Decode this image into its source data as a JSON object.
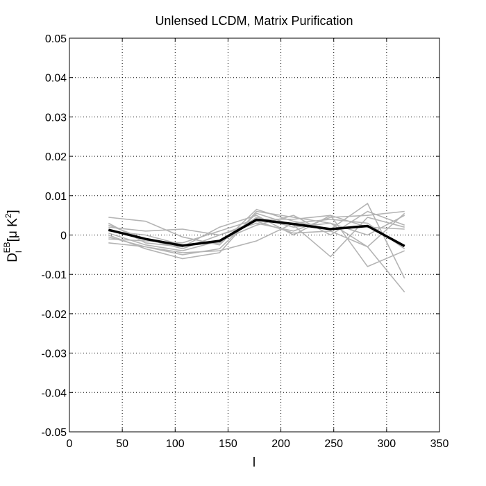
{
  "chart_data": {
    "type": "line",
    "title": "Unlensed LCDM, Matrix Purification",
    "xlabel": "l",
    "ylabel": {
      "main": "D",
      "sub": "l",
      "sup": "EB",
      "unit_prefix": "[μ K",
      "unit_sup": "2",
      "unit_suffix": "]"
    },
    "xlim": [
      0,
      350
    ],
    "ylim": [
      -0.05,
      0.05
    ],
    "xticks": [
      0,
      50,
      100,
      150,
      200,
      250,
      300,
      350
    ],
    "yticks": [
      -0.05,
      -0.04,
      -0.03,
      -0.02,
      -0.01,
      0,
      0.01,
      0.02,
      0.03,
      0.04,
      0.05
    ],
    "xtick_labels": [
      "0",
      "50",
      "100",
      "150",
      "200",
      "250",
      "300",
      "350"
    ],
    "ytick_labels": [
      "-0.05",
      "-0.04",
      "-0.03",
      "-0.02",
      "-0.01",
      "0",
      "0.01",
      "0.02",
      "0.03",
      "0.04",
      "0.05"
    ],
    "grid": true,
    "x": [
      37,
      72,
      107,
      142,
      177,
      212,
      247,
      282,
      317
    ],
    "series": [
      {
        "color": "#b4b4b4",
        "values": [
          0.0045,
          0.0035,
          -0.0005,
          -0.0025,
          0.0065,
          0.0035,
          0.0015,
          0.008,
          -0.011
        ]
      },
      {
        "color": "#b4b4b4",
        "values": [
          0.0,
          -0.0035,
          -0.006,
          -0.0045,
          0.006,
          0.0045,
          0.003,
          -0.003,
          -0.0145
        ]
      },
      {
        "color": "#b4b4b4",
        "values": [
          -0.001,
          -0.0015,
          -0.002,
          0.001,
          0.004,
          0.004,
          0.005,
          -0.008,
          -0.004
        ]
      },
      {
        "color": "#b4b4b4",
        "values": [
          0.002,
          0.001,
          0.0015,
          0.0,
          0.003,
          0.001,
          0.0045,
          0.005,
          0.006
        ]
      },
      {
        "color": "#b4b4b4",
        "values": [
          -0.002,
          -0.003,
          -0.005,
          -0.0035,
          0.0055,
          0.0025,
          -0.0055,
          0.0045,
          0.002
        ]
      },
      {
        "color": "#b4b4b4",
        "values": [
          0.003,
          -0.002,
          -0.003,
          0.002,
          0.005,
          0.0,
          0.005,
          0.002,
          0.0015
        ]
      },
      {
        "color": "#b4b4b4",
        "values": [
          0.0005,
          -0.0025,
          -0.004,
          -0.0015,
          0.0025,
          0.005,
          0.0,
          0.006,
          0.0025
        ]
      },
      {
        "color": "#b4b4b4",
        "values": [
          -0.0005,
          -0.003,
          -0.0045,
          -0.004,
          -0.0015,
          0.003,
          0.004,
          0.003,
          -0.0035
        ]
      },
      {
        "color": "#b4b4b4",
        "values": [
          0.001,
          0.0,
          -0.0025,
          -0.002,
          0.0045,
          0.002,
          0.003,
          0.0,
          0.005
        ]
      },
      {
        "color": "#b4b4b4",
        "values": [
          0.0025,
          -0.001,
          -0.0035,
          0.0,
          0.0035,
          0.0005,
          0.001,
          -0.003,
          0.0055
        ]
      },
      {
        "color": "#000000",
        "values": [
          0.0013,
          -0.001,
          -0.0027,
          -0.0015,
          0.0039,
          0.0028,
          0.0015,
          0.0023,
          -0.0028
        ],
        "mean": true
      }
    ]
  }
}
